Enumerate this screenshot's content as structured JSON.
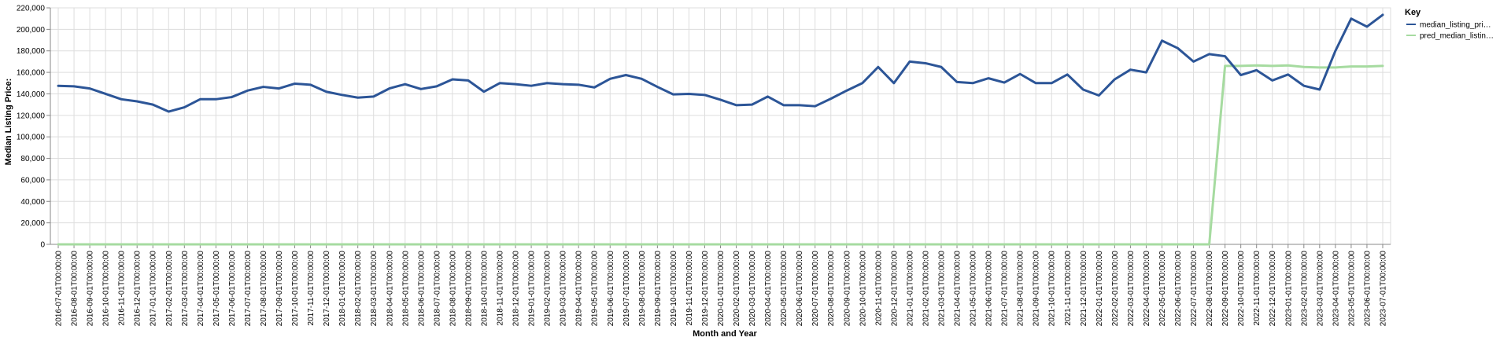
{
  "chart_data": {
    "type": "line",
    "xlabel": "Month and Year",
    "ylabel": "Median Listing Price:",
    "ylim": [
      0,
      220000
    ],
    "yticks": [
      "0",
      "20,000",
      "40,000",
      "60,000",
      "80,000",
      "100,000",
      "120,000",
      "140,000",
      "160,000",
      "180,000",
      "200,000",
      "220,000"
    ],
    "grid": true,
    "legend": {
      "title": "Key",
      "position": "top-right"
    },
    "categories": [
      "2016-07-01T00:00:00",
      "2016-08-01T00:00:00",
      "2016-09-01T00:00:00",
      "2016-10-01T00:00:00",
      "2016-11-01T00:00:00",
      "2016-12-01T00:00:00",
      "2017-01-01T00:00:00",
      "2017-02-01T00:00:00",
      "2017-03-01T00:00:00",
      "2017-04-01T00:00:00",
      "2017-05-01T00:00:00",
      "2017-06-01T00:00:00",
      "2017-07-01T00:00:00",
      "2017-08-01T00:00:00",
      "2017-09-01T00:00:00",
      "2017-10-01T00:00:00",
      "2017-11-01T00:00:00",
      "2017-12-01T00:00:00",
      "2018-01-01T00:00:00",
      "2018-02-01T00:00:00",
      "2018-03-01T00:00:00",
      "2018-04-01T00:00:00",
      "2018-05-01T00:00:00",
      "2018-06-01T00:00:00",
      "2018-07-01T00:00:00",
      "2018-08-01T00:00:00",
      "2018-09-01T00:00:00",
      "2018-10-01T00:00:00",
      "2018-11-01T00:00:00",
      "2018-12-01T00:00:00",
      "2019-01-01T00:00:00",
      "2019-02-01T00:00:00",
      "2019-03-01T00:00:00",
      "2019-04-01T00:00:00",
      "2019-05-01T00:00:00",
      "2019-06-01T00:00:00",
      "2019-07-01T00:00:00",
      "2019-08-01T00:00:00",
      "2019-09-01T00:00:00",
      "2019-10-01T00:00:00",
      "2019-11-01T00:00:00",
      "2019-12-01T00:00:00",
      "2020-01-01T00:00:00",
      "2020-02-01T00:00:00",
      "2020-03-01T00:00:00",
      "2020-04-01T00:00:00",
      "2020-05-01T00:00:00",
      "2020-06-01T00:00:00",
      "2020-07-01T00:00:00",
      "2020-08-01T00:00:00",
      "2020-09-01T00:00:00",
      "2020-10-01T00:00:00",
      "2020-11-01T00:00:00",
      "2020-12-01T00:00:00",
      "2021-01-01T00:00:00",
      "2021-02-01T00:00:00",
      "2021-03-01T00:00:00",
      "2021-04-01T00:00:00",
      "2021-05-01T00:00:00",
      "2021-06-01T00:00:00",
      "2021-07-01T00:00:00",
      "2021-08-01T00:00:00",
      "2021-09-01T00:00:00",
      "2021-10-01T00:00:00",
      "2021-11-01T00:00:00",
      "2021-12-01T00:00:00",
      "2022-01-01T00:00:00",
      "2022-02-01T00:00:00",
      "2022-03-01T00:00:00",
      "2022-04-01T00:00:00",
      "2022-05-01T00:00:00",
      "2022-06-01T00:00:00",
      "2022-07-01T00:00:00",
      "2022-08-01T00:00:00",
      "2022-09-01T00:00:00",
      "2022-10-01T00:00:00",
      "2022-11-01T00:00:00",
      "2022-12-01T00:00:00",
      "2023-01-01T00:00:00",
      "2023-02-01T00:00:00",
      "2023-03-01T00:00:00",
      "2023-04-01T00:00:00",
      "2023-05-01T00:00:00",
      "2023-06-01T00:00:00",
      "2023-07-01T00:00:00"
    ],
    "series": [
      {
        "name": "median_listing_pri…",
        "color": "#2c5597",
        "values": [
          147500,
          147000,
          145000,
          140000,
          135000,
          133000,
          130000,
          123500,
          127500,
          135000,
          135000,
          137000,
          143000,
          146500,
          145000,
          149500,
          148500,
          142000,
          139000,
          136500,
          137500,
          145000,
          149000,
          144500,
          147000,
          153500,
          152500,
          142000,
          150000,
          149000,
          147500,
          150000,
          149000,
          148500,
          146000,
          154000,
          157500,
          154000,
          146500,
          139500,
          140000,
          139000,
          134500,
          129500,
          130000,
          137500,
          129500,
          129500,
          128500,
          135500,
          143000,
          150000,
          165000,
          150000,
          170000,
          168500,
          165000,
          151000,
          150000,
          154500,
          150500,
          158500,
          150000,
          150000,
          158000,
          144000,
          138500,
          153500,
          162500,
          160000,
          189500,
          182500,
          170000,
          177000,
          175000,
          157500,
          162000,
          152500,
          158000,
          147500,
          144000,
          180000,
          210000,
          202500,
          213500
        ]
      },
      {
        "name": "pred_median_listin…",
        "color": "#a6dba0",
        "values": [
          0,
          0,
          0,
          0,
          0,
          0,
          0,
          0,
          0,
          0,
          0,
          0,
          0,
          0,
          0,
          0,
          0,
          0,
          0,
          0,
          0,
          0,
          0,
          0,
          0,
          0,
          0,
          0,
          0,
          0,
          0,
          0,
          0,
          0,
          0,
          0,
          0,
          0,
          0,
          0,
          0,
          0,
          0,
          0,
          0,
          0,
          0,
          0,
          0,
          0,
          0,
          0,
          0,
          0,
          0,
          0,
          0,
          0,
          0,
          0,
          0,
          0,
          0,
          0,
          0,
          0,
          0,
          0,
          0,
          0,
          0,
          0,
          0,
          0,
          166000,
          166000,
          166500,
          166000,
          166500,
          165000,
          164500,
          164500,
          165500,
          165500,
          166000
        ]
      }
    ]
  }
}
